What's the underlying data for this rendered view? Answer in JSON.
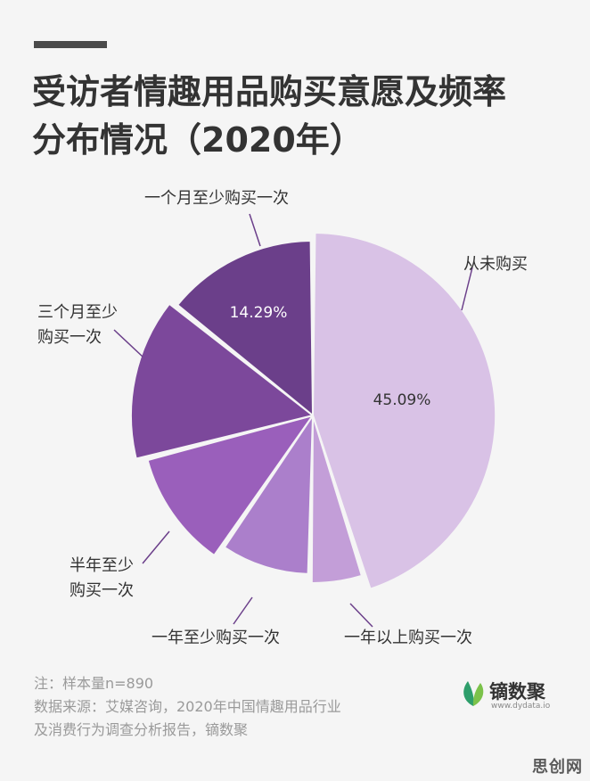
{
  "title_line1": "受访者情趣用品购买意愿及频率",
  "title_line2": "分布情况（2020年）",
  "chart_data": {
    "type": "pie",
    "title": "受访者情趣用品购买意愿及频率分布情况（2020年）",
    "slices": [
      {
        "label": "从未购买",
        "value": 45.09,
        "value_label": "45.09%",
        "color": "#d9c2e6"
      },
      {
        "label": "一年以上购买一次",
        "value": 5.2,
        "value_label": "",
        "color": "#c39ed8"
      },
      {
        "label": "一年至少购买一次",
        "value": 9.3,
        "value_label": "",
        "color": "#ab7fcb"
      },
      {
        "label": "半年至少购买一次",
        "value": 11.4,
        "value_label": "",
        "color": "#9a5fbb"
      },
      {
        "label": "三个月至少购买一次",
        "value": 14.72,
        "value_label": "",
        "color": "#7c489b"
      },
      {
        "label": "一个月至少购买一次",
        "value": 14.29,
        "value_label": "14.29%",
        "color": "#6b3f8a"
      }
    ],
    "outside_labels": [
      {
        "lines": [
          "从未购买"
        ]
      },
      {
        "lines": [
          "一年以上购买一次"
        ]
      },
      {
        "lines": [
          "一年至少购买一次"
        ]
      },
      {
        "lines": [
          "半年至少",
          "购买一次"
        ]
      },
      {
        "lines": [
          "三个月至少",
          "购买一次"
        ]
      },
      {
        "lines": [
          "一个月至少购买一次"
        ]
      }
    ]
  },
  "notes": {
    "line1": "注：样本量n=890",
    "line2": "数据来源：艾媒咨询，2020年中国情趣用品行业",
    "line3": "及消费行为调查分析报告，镝数聚"
  },
  "brand": {
    "name": "镝数聚",
    "url": "www.dydata.io",
    "logo_colors": [
      "#2e9e6b",
      "#7bc24a"
    ]
  },
  "watermark": "思创网"
}
